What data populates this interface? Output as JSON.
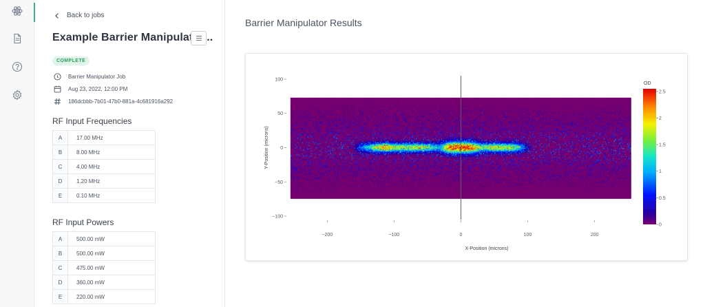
{
  "rail": {
    "items": [
      {
        "icon": "atom-icon",
        "active": true
      },
      {
        "icon": "document-icon",
        "active": false
      },
      {
        "icon": "help-icon",
        "active": false
      },
      {
        "icon": "gear-icon",
        "active": false
      }
    ],
    "accent": "#3fb27f"
  },
  "job": {
    "back_label": "Back to jobs",
    "title": "Example Barrier Manipulator...",
    "status": "COMPLETE",
    "type": "Barrier Manipulator Job",
    "date": "Aug 23, 2022, 12:00 PM",
    "id": "186dcbbb-7b01-47b0-881a-4c681916a292"
  },
  "frequencies": {
    "title": "RF Input Frequencies",
    "rows": [
      {
        "key": "A",
        "value": "17.00 MHz"
      },
      {
        "key": "B",
        "value": "8.00 MHz"
      },
      {
        "key": "C",
        "value": "4.00 MHz"
      },
      {
        "key": "D",
        "value": "1.20 MHz"
      },
      {
        "key": "E",
        "value": "0.10 MHz"
      }
    ]
  },
  "powers": {
    "title": "RF Input Powers",
    "rows": [
      {
        "key": "A",
        "value": "500.00 mW"
      },
      {
        "key": "B",
        "value": "500.00 mW"
      },
      {
        "key": "C",
        "value": "475.00 mW"
      },
      {
        "key": "D",
        "value": "360.00 mW"
      },
      {
        "key": "E",
        "value": "220.00 mW"
      }
    ]
  },
  "results": {
    "title": "Barrier Manipulator Results"
  },
  "chart_data": {
    "type": "heatmap",
    "xlabel": "X-Position (microns)",
    "ylabel": "Y-Position (microns)",
    "xlim": [
      -260,
      255
    ],
    "ylim": [
      -105,
      105
    ],
    "x_ticks": [
      -200,
      -100,
      0,
      100,
      200
    ],
    "x_tick_labels": [
      "−200",
      "−100",
      "0",
      "100",
      "200"
    ],
    "y_ticks": [
      100,
      50,
      0,
      -50,
      -100
    ],
    "y_tick_labels": [
      "100",
      "50",
      "0",
      "−50",
      "−100"
    ],
    "data_extent": {
      "x": [
        -255,
        255
      ],
      "y": [
        -75,
        73
      ]
    },
    "colorbar": {
      "title": "OD",
      "range": [
        0,
        2.55
      ],
      "ticks": [
        2.5,
        2,
        1.5,
        1,
        0.5,
        0
      ],
      "tick_labels": [
        "2.5",
        "2",
        "1.5",
        "1",
        "0.5",
        "0"
      ]
    },
    "features": [
      {
        "name": "central cloud",
        "x_center": 0,
        "x_half_width": 27,
        "y_half_width": 8,
        "peak_od": 2.3
      },
      {
        "name": "right cloud",
        "x_center": 60,
        "x_half_width": 34,
        "y_half_width": 6,
        "peak_od": 1.7
      },
      {
        "name": "left cloud",
        "x_center": -80,
        "x_half_width": 50,
        "y_half_width": 6,
        "peak_od": 1.6
      },
      {
        "name": "far left tail",
        "x_center": -130,
        "x_half_width": 25,
        "y_half_width": 6,
        "peak_od": 0.9
      }
    ],
    "center_line_x": 0
  }
}
